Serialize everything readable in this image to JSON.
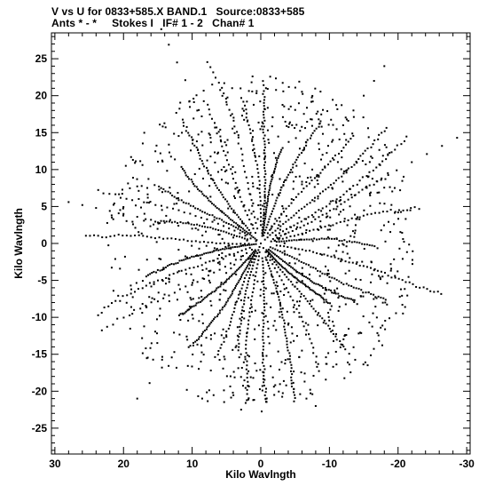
{
  "header": {
    "title": "V vs U for 0833+585.X BAND.1   Source:0833+585",
    "subtitle": "Ants * - *     Stokes I   IF# 1 - 2   Chan# 1"
  },
  "chart_data": {
    "type": "scatter",
    "title": "V vs U for 0833+585.X BAND.1   Source:0833+585",
    "subtitle": "Ants * - *     Stokes I   IF# 1 - 2   Chan# 1",
    "xlabel": "Kilo Wavlngth",
    "ylabel": "Kilo Wavlngth",
    "xlim": [
      30.5,
      -30.5
    ],
    "ylim": [
      -28.5,
      28.5
    ],
    "x_ticks": [
      30,
      20,
      10,
      0,
      -10,
      -20,
      -30
    ],
    "y_ticks": [
      -25,
      -20,
      -15,
      -10,
      -5,
      0,
      5,
      10,
      15,
      20,
      25
    ],
    "grid": false,
    "marker_color": "#000000",
    "series": [
      {
        "x": [
          0,
          2,
          4,
          6,
          8,
          10,
          12,
          14,
          16,
          18,
          20,
          22,
          24,
          26,
          28,
          0,
          1.2,
          2.5,
          3.7,
          5,
          6.2,
          7.4,
          8.6,
          9.8,
          11,
          12.2,
          13.4,
          14.5,
          0,
          -1.5,
          -3,
          -4.5,
          -6,
          -7.5,
          -9,
          -10.5,
          -12,
          -13.5,
          -15,
          -16.5,
          -18,
          0,
          -2.2,
          -4.4,
          -6.6,
          -8.8,
          -11,
          -13.2,
          -15.4,
          -17.6,
          -19.8,
          -22,
          -24.2,
          -26.4,
          -28.6,
          0,
          1.8,
          3.6,
          5.4,
          7.2,
          9,
          10.8,
          12.6,
          14.4,
          16.2,
          18,
          0,
          -0.8,
          -1.6,
          -2.4,
          -3.2,
          -4,
          -4.8,
          -5.6,
          -6.4,
          -7.2,
          -8
        ],
        "y": [
          0,
          0.4,
          0.8,
          1.2,
          1.6,
          2,
          2.4,
          2.8,
          3.2,
          3.6,
          4,
          4.4,
          4.8,
          5.2,
          5.6,
          0,
          2.5,
          5,
          7.4,
          9.9,
          12.3,
          14.7,
          17.2,
          19.6,
          22.1,
          24.5,
          26.9,
          29,
          0,
          2,
          4,
          6,
          8,
          10,
          12,
          14,
          16,
          18,
          20,
          22,
          24,
          0,
          1.1,
          2.2,
          3.3,
          4.4,
          5.5,
          6.6,
          7.7,
          8.8,
          9.9,
          11,
          12.1,
          13.2,
          14.3,
          0,
          -2.1,
          -4.2,
          -6.3,
          -8.4,
          -10.5,
          -12.6,
          -14.7,
          -16.8,
          -18.9,
          -21,
          0,
          -2.2,
          -4.4,
          -6.6,
          -8.8,
          -11,
          -13.2,
          -15.4,
          -17.6,
          -19.8,
          -22
        ]
      }
    ]
  }
}
